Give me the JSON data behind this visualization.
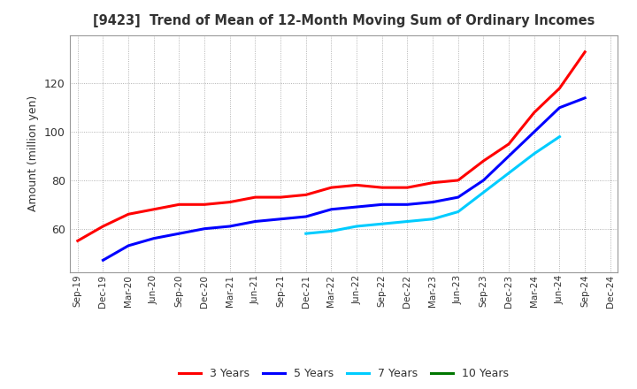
{
  "title": "[9423]  Trend of Mean of 12-Month Moving Sum of Ordinary Incomes",
  "ylabel": "Amount (million yen)",
  "background_color": "#ffffff",
  "plot_bg_color": "#ffffff",
  "grid_color": "#888888",
  "ylim": [
    42,
    140
  ],
  "yticks": [
    60,
    80,
    100,
    120
  ],
  "series": {
    "3 Years": {
      "color": "#ff0000",
      "x_indices": [
        0,
        1,
        2,
        3,
        4,
        5,
        6,
        7,
        8,
        9,
        10,
        11,
        12,
        13,
        14,
        15,
        16,
        17,
        18,
        19,
        20
      ],
      "y": [
        55,
        61,
        66,
        68,
        70,
        70,
        71,
        73,
        73,
        74,
        77,
        78,
        77,
        77,
        79,
        80,
        88,
        95,
        108,
        118,
        133
      ]
    },
    "5 Years": {
      "color": "#0000ff",
      "x_indices": [
        1,
        2,
        3,
        4,
        5,
        6,
        7,
        8,
        9,
        10,
        11,
        12,
        13,
        14,
        15,
        16,
        17,
        18,
        19,
        20
      ],
      "y": [
        47,
        53,
        56,
        58,
        60,
        61,
        63,
        64,
        65,
        68,
        69,
        70,
        70,
        71,
        73,
        80,
        90,
        100,
        110,
        114
      ]
    },
    "7 Years": {
      "color": "#00ccff",
      "x_indices": [
        9,
        10,
        11,
        12,
        13,
        14,
        15,
        16,
        17,
        18,
        19
      ],
      "y": [
        58,
        59,
        61,
        62,
        63,
        64,
        67,
        75,
        83,
        91,
        98
      ]
    },
    "10 Years": {
      "color": "#007700",
      "x_indices": [],
      "y": []
    }
  },
  "x_labels": [
    "Sep-19",
    "Dec-19",
    "Mar-20",
    "Jun-20",
    "Sep-20",
    "Dec-20",
    "Mar-21",
    "Jun-21",
    "Sep-21",
    "Dec-21",
    "Mar-22",
    "Jun-22",
    "Sep-22",
    "Dec-22",
    "Mar-23",
    "Jun-23",
    "Sep-23",
    "Dec-23",
    "Mar-24",
    "Jun-24",
    "Sep-24",
    "Dec-24"
  ],
  "title_color": "#333333",
  "tick_label_color": "#333333"
}
